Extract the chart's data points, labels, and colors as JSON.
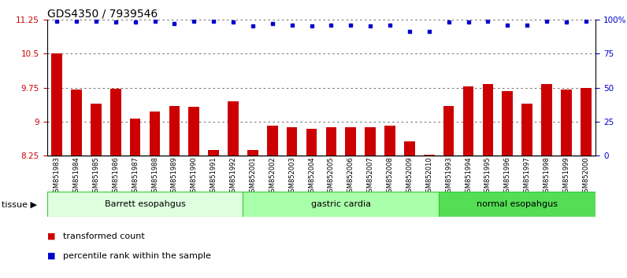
{
  "title": "GDS4350 / 7939546",
  "samples": [
    "GSM851983",
    "GSM851984",
    "GSM851985",
    "GSM851986",
    "GSM851987",
    "GSM851988",
    "GSM851989",
    "GSM851990",
    "GSM851991",
    "GSM851992",
    "GSM852001",
    "GSM852002",
    "GSM852003",
    "GSM852004",
    "GSM852005",
    "GSM852006",
    "GSM852007",
    "GSM852008",
    "GSM852009",
    "GSM852010",
    "GSM851993",
    "GSM851994",
    "GSM851995",
    "GSM851996",
    "GSM851997",
    "GSM851998",
    "GSM851999",
    "GSM852000"
  ],
  "bar_values": [
    10.5,
    9.7,
    9.4,
    9.73,
    9.07,
    9.22,
    9.35,
    9.32,
    8.38,
    9.45,
    8.37,
    8.92,
    8.88,
    8.85,
    8.87,
    8.87,
    8.87,
    8.92,
    8.57,
    8.28,
    9.35,
    9.78,
    9.82,
    9.67,
    9.4,
    9.82,
    9.7,
    9.75
  ],
  "percentile_values": [
    99,
    99,
    99,
    98,
    98,
    99,
    97,
    99,
    99,
    98,
    95,
    97,
    96,
    95,
    96,
    96,
    95,
    96,
    91,
    91,
    98,
    98,
    99,
    96,
    96,
    99,
    98,
    99
  ],
  "groups": [
    {
      "label": "Barrett esopahgus",
      "start": 0,
      "end": 10,
      "color": "#dfffdf",
      "border": "#33cc33"
    },
    {
      "label": "gastric cardia",
      "start": 10,
      "end": 20,
      "color": "#aaffaa",
      "border": "#33cc33"
    },
    {
      "label": "normal esopahgus",
      "start": 20,
      "end": 28,
      "color": "#55dd55",
      "border": "#33cc33"
    }
  ],
  "ymin": 8.25,
  "ymax": 11.25,
  "yticks": [
    8.25,
    9.0,
    9.75,
    10.5,
    11.25
  ],
  "ytick_labels": [
    "8.25",
    "9",
    "9.75",
    "10.5",
    "11.25"
  ],
  "right_yticks": [
    0,
    25,
    50,
    75,
    100
  ],
  "right_ytick_labels": [
    "0",
    "25",
    "50",
    "75",
    "100%"
  ],
  "bar_color": "#cc0000",
  "dot_color": "#0000cc",
  "grid_color": "#555555",
  "title_fontsize": 10,
  "label_fontsize": 8,
  "tick_fontsize": 7.5,
  "xtick_fontsize": 6
}
